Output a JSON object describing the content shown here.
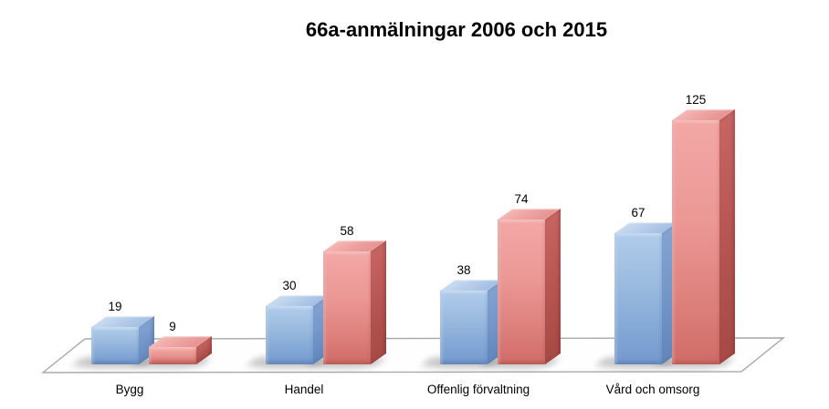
{
  "chart_data": {
    "type": "bar",
    "subtype": "3d-clustered-column",
    "title": "66a-anmälningar 2006 och 2015",
    "categories": [
      "Bygg",
      "Handel",
      "Offenlig förvaltning",
      "Vård och omsorg"
    ],
    "series": [
      {
        "name": "2006",
        "color": "#8db3e2",
        "values": [
          19,
          30,
          38,
          67
        ]
      },
      {
        "name": "2015",
        "color": "#e2908d",
        "values": [
          9,
          58,
          74,
          125
        ]
      }
    ],
    "data_labels_shown": true,
    "legend": "none",
    "gridlines": false,
    "axes_shown": false,
    "ylim": [
      0,
      130
    ],
    "background_color": "#ffffff",
    "text_color": "#000000",
    "floor_fill_color": "#fefefe",
    "floor_border_color": "#a9a9a9"
  }
}
